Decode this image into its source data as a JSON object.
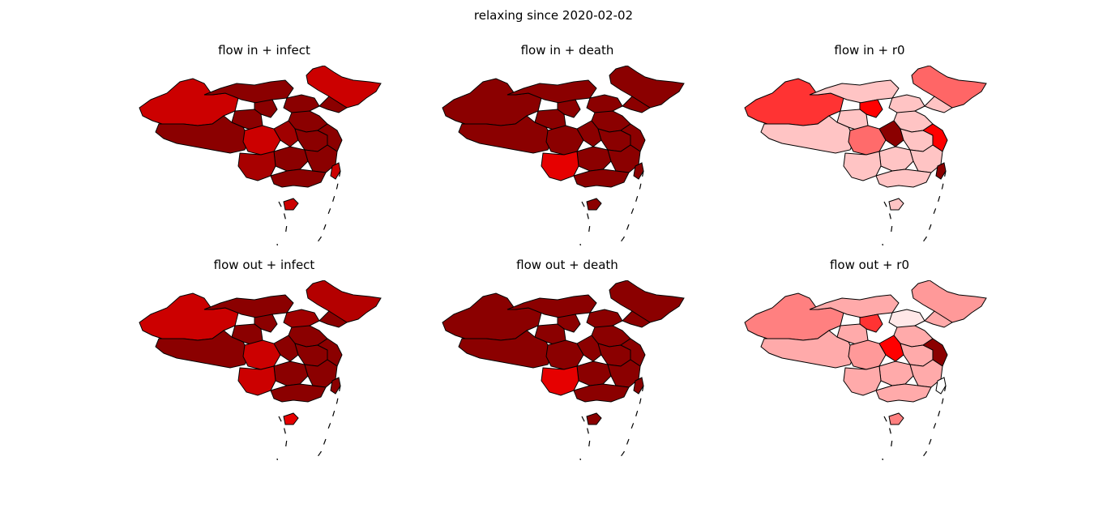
{
  "figure": {
    "title": "relaxing since 2020-02-02"
  },
  "colors": {
    "outline": "#000000",
    "fill_dark": "#8b0000"
  },
  "panels": [
    {
      "title": "flow in + infect",
      "map": "china-provinces",
      "fills": {
        "base": "#8b0000",
        "west": "#cc0000",
        "northeast": "#cc0000",
        "yunnan": "#a80000",
        "sichuan": "#cc0000",
        "hainan": "#cc0000",
        "taiwan": "#cc0000",
        "other": [
          "#8b0000",
          "#8b0000",
          "#a00000",
          "#8b0000"
        ]
      }
    },
    {
      "title": "flow in + death",
      "map": "china-provinces",
      "fills": {
        "base": "#8b0000",
        "west": "#8b0000",
        "northeast": "#8b0000",
        "yunnan": "#e60000",
        "sichuan": "#8b0000",
        "hainan": "#8b0000",
        "taiwan": "#8b0000",
        "other": [
          "#8b0000",
          "#8b0000",
          "#8b0000",
          "#8b0000"
        ]
      }
    },
    {
      "title": "flow in + r0",
      "map": "china-provinces",
      "fills": {
        "base": "#ffc4c4",
        "west": "#ff3333",
        "northeast": "#ff6666",
        "yunnan": "#ffc4c4",
        "sichuan": "#ff6b6b",
        "hainan": "#ffc4c4",
        "taiwan": "#8b0000",
        "other": [
          "#ff0000",
          "#ffc4c4",
          "#8b0000",
          "#ff0000"
        ]
      }
    },
    {
      "title": "flow out + infect",
      "map": "china-provinces",
      "fills": {
        "base": "#8b0000",
        "west": "#cc0000",
        "northeast": "#b40000",
        "yunnan": "#cc0000",
        "sichuan": "#cc0000",
        "hainan": "#e60000",
        "taiwan": "#8b0000",
        "other": [
          "#8b0000",
          "#a00000",
          "#8b0000",
          "#8b0000"
        ]
      }
    },
    {
      "title": "flow out + death",
      "map": "china-provinces",
      "fills": {
        "base": "#8b0000",
        "west": "#8b0000",
        "northeast": "#8b0000",
        "yunnan": "#e60000",
        "sichuan": "#8b0000",
        "hainan": "#8b0000",
        "taiwan": "#8b0000",
        "other": [
          "#8b0000",
          "#8b0000",
          "#8b0000",
          "#8b0000"
        ]
      }
    },
    {
      "title": "flow out + r0",
      "map": "china-provinces",
      "fills": {
        "base": "#ffaaaa",
        "west": "#ff8080",
        "northeast": "#ff9999",
        "yunnan": "#ffaaaa",
        "sichuan": "#ff9999",
        "hainan": "#ff8080",
        "taiwan": "#ffffff",
        "other": [
          "#ff3333",
          "#ffe8e8",
          "#ff0000",
          "#8b0000"
        ]
      }
    }
  ]
}
